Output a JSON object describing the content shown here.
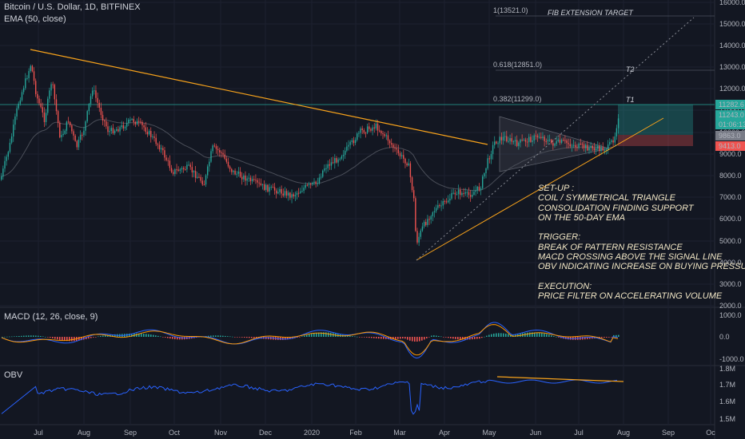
{
  "header": {
    "symbol": "Bitcoin / U.S. Dollar, 1D, BITFINEX",
    "indicator": "EMA (50, close)"
  },
  "price_axis": [
    "16000.0",
    "15000.0",
    "14000.0",
    "13000.0",
    "12000.0",
    "11000.0",
    "10000.0",
    "9000.0",
    "8000.0",
    "7000.0",
    "6000.0",
    "5000.0",
    "4000.0",
    "3000.0",
    "2000.0"
  ],
  "price_tags": {
    "t1_price": "11282.6",
    "current": "11243.0",
    "countdown": "01:06:13",
    "entry": "9863.0",
    "stop": "9413.0"
  },
  "fib_labels": {
    "ext": "1(13521.0)",
    "f618": "0.618(12851.0)",
    "f382": "0.382(11299.0)"
  },
  "targets": {
    "fib_ext_title": "FIB EXTENSION TARGET",
    "t2": "T2",
    "t1": "T1"
  },
  "time_axis": [
    "Jul",
    "Aug",
    "Sep",
    "Oct",
    "Nov",
    "Dec",
    "2020",
    "Feb",
    "Mar",
    "Apr",
    "May",
    "Jun",
    "Jul",
    "Aug",
    "Sep",
    "Oc"
  ],
  "macd": {
    "label": "MACD (12, 26, close, 9)",
    "axis": [
      "1000.0",
      "0.0",
      "-1000.0"
    ]
  },
  "obv": {
    "label": "OBV",
    "axis": [
      "1.8M",
      "1.7M",
      "1.6M",
      "1.5M"
    ]
  },
  "annotation": {
    "lines": [
      "SET-UP :",
      "COIL / SYMMETRICAL TRIANGLE",
      "CONSOLIDATION FINDING SUPPORT",
      "ON THE 50-DAY EMA",
      "",
      "TRIGGER:",
      "BREAK OF PATTERN RESISTANCE",
      "MACD CROSSING ABOVE THE SIGNAL LINE",
      "OBV INDICATING INCREASE ON BUYING PRESSURE",
      "",
      "EXECUTION:",
      "PRICE FILTER ON ACCELERATING VOLUME"
    ]
  },
  "colors": {
    "bg": "#131722",
    "up": "#26a69a",
    "down": "#ef5350",
    "trend": "#f7a21b",
    "ema": "#4a4e58",
    "macd": "#2962ff",
    "signal": "#ff9800",
    "obv": "#2962ff",
    "text_note": "#f2e7c6"
  }
}
